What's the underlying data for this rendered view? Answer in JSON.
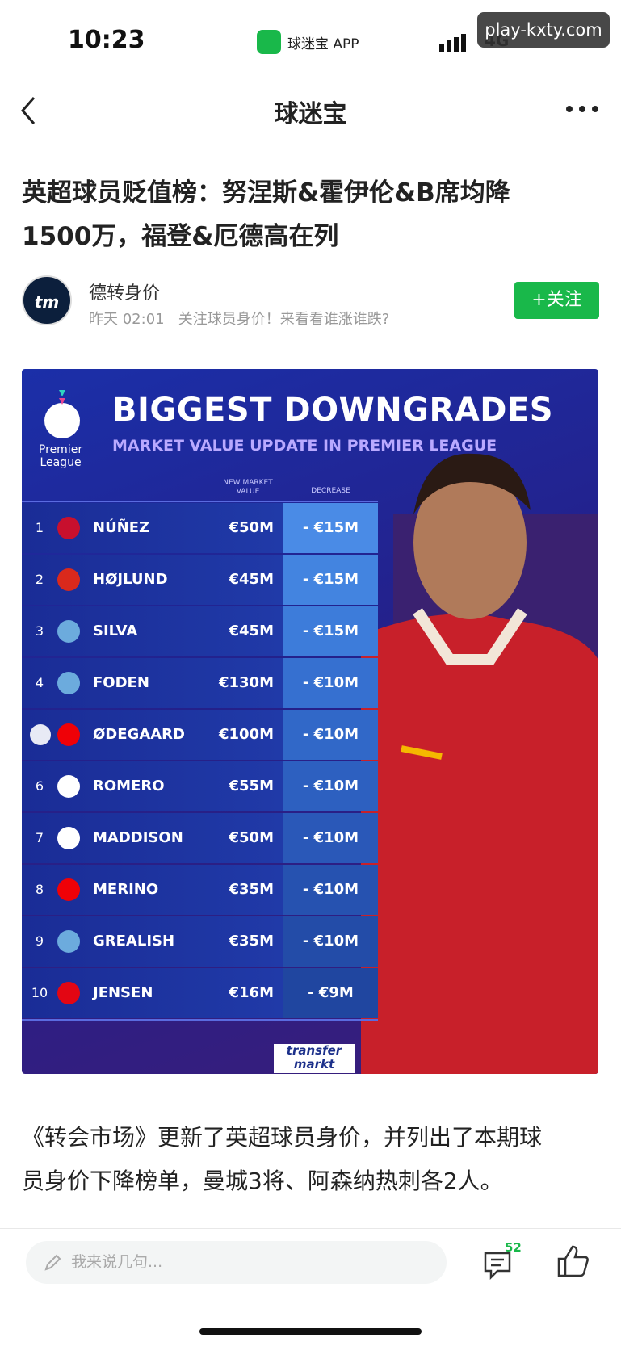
{
  "status_bar": {
    "time": "10:23",
    "app": "球迷宝 APP",
    "network": "4G"
  },
  "watermark": "play-kxty.com",
  "nav": {
    "title": "球迷宝"
  },
  "article": {
    "title_lines": [
      "英超球员贬值榜：努涅斯&霍伊伦&B席均降",
      "1500万，福登&厄德高在列"
    ],
    "author": {
      "avatar": "tm",
      "name": "德转身价",
      "time": "昨天 02:01",
      "bio": "关注球员身价！来看看谁涨谁跌?"
    },
    "follow": "+关注",
    "infographic": {
      "league": "Premier League",
      "title": "BIGGEST DOWNGRADES",
      "subtitle": "MARKET VALUE UPDATE IN PREMIER LEAGUE",
      "columns": [
        "NEW MARKET VALUE",
        "DECREASE"
      ],
      "rows": [
        {
          "rank": "1",
          "name": "NÚÑEZ",
          "value": "€50M",
          "decrease": "- €15M"
        },
        {
          "rank": "2",
          "name": "HØJLUND",
          "value": "€45M",
          "decrease": "- €15M"
        },
        {
          "rank": "3",
          "name": "SILVA",
          "value": "€45M",
          "decrease": "- €15M"
        },
        {
          "rank": "4",
          "name": "FODEN",
          "value": "€130M",
          "decrease": "- €10M"
        },
        {
          "name": "ØDEGAARD",
          "value": "€100M",
          "decrease": "- €10M"
        },
        {
          "rank": "6",
          "name": "ROMERO",
          "value": "€55M",
          "decrease": "- €10M"
        },
        {
          "rank": "7",
          "name": "MADDISON",
          "value": "€50M",
          "decrease": "- €10M"
        },
        {
          "rank": "8",
          "name": "MERINO",
          "value": "€35M",
          "decrease": "- €10M"
        },
        {
          "rank": "9",
          "name": "GREALISH",
          "value": "€35M",
          "decrease": "- €10M"
        },
        {
          "rank": "10",
          "name": "JENSEN",
          "value": "€16M",
          "decrease": "- €9M"
        }
      ],
      "source": [
        "transfer",
        "markt"
      ]
    },
    "body_lines": [
      "《转会市场》更新了英超球员身价，并列出了本期球",
      "员身价下降榜单，曼城3将、阿森纳热刺各2人。"
    ]
  },
  "bottom_bar": {
    "placeholder": "我来说几句...",
    "comments": "52"
  }
}
